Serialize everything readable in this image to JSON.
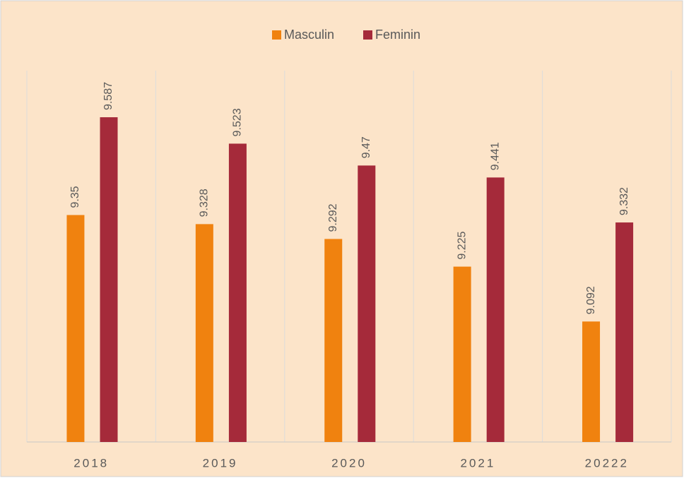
{
  "chart_data": {
    "type": "bar",
    "categories": [
      "2018",
      "2019",
      "2020",
      "2021",
      "20222"
    ],
    "series": [
      {
        "name": "Masculin",
        "color": "#f0820f",
        "values": [
          9.35,
          9.328,
          9.292,
          9.225,
          9.092
        ]
      },
      {
        "name": "Feminin",
        "color": "#a52a3a",
        "values": [
          9.587,
          9.523,
          9.47,
          9.441,
          9.332
        ]
      }
    ],
    "ylim": [
      8.8,
      9.7
    ]
  }
}
